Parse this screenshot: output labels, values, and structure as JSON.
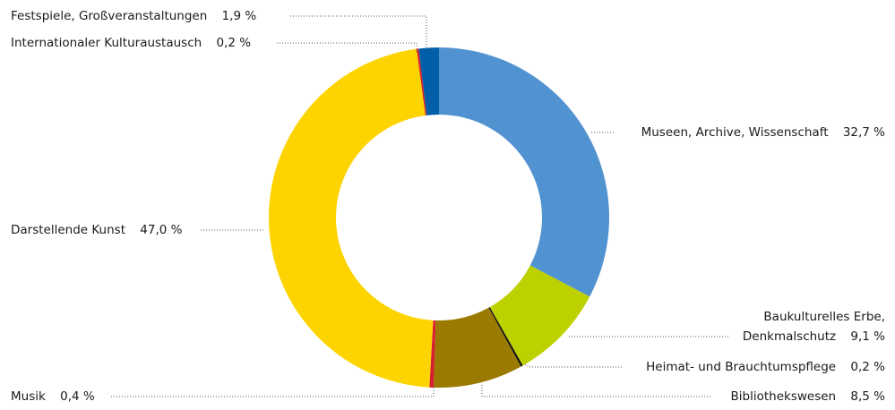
{
  "chart_data": {
    "type": "donut",
    "categories": [
      "Museen, Archive, Wissenschaft",
      "Baukulturelles Erbe, Denkmalschutz",
      "Heimat- und Brauchtumspflege",
      "Bibliothekswesen",
      "Musik",
      "Darstellende Kunst",
      "Internationaler Kulturaustausch",
      "Festspiele, Großveranstaltungen"
    ],
    "values": [
      32.7,
      9.1,
      0.2,
      8.5,
      0.4,
      47.0,
      0.2,
      1.9
    ],
    "value_labels": [
      "32,7 %",
      "9,1 %",
      "0,2 %",
      "8,5 %",
      "0,4 %",
      "47,0 %",
      "0,2 %",
      "1,9 %"
    ],
    "colors": [
      "#5192d0",
      "#bdd000",
      "#111111",
      "#9a7a00",
      "#d6202e",
      "#fdd400",
      "#d6202e",
      "#005fa8"
    ]
  }
}
